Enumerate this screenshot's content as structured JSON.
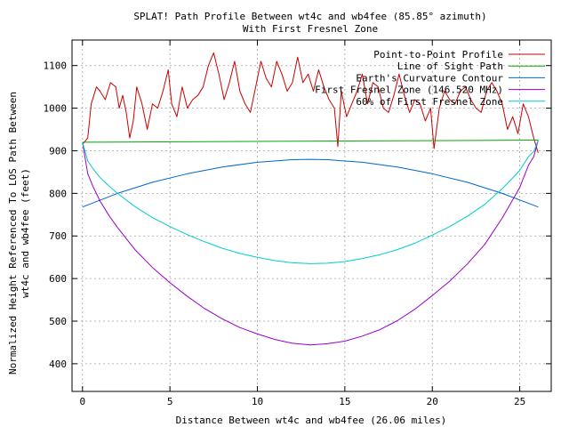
{
  "chart_data": {
    "type": "line",
    "title": "SPLAT! Path Profile Between wt4c and wb4fee (85.85° azimuth)",
    "subtitle": "With First Fresnel Zone",
    "xlabel": "Distance Between wt4c and wb4fee (26.06 miles)",
    "ylabel_line1": "Normalized Height Referenced To LOS Path Between",
    "ylabel_line2": "wt4c and wb4fee (feet)",
    "xlim": [
      -0.6,
      26.8
    ],
    "ylim": [
      335,
      1160
    ],
    "x_ticks": [
      0,
      5,
      10,
      15,
      20,
      25
    ],
    "y_ticks": [
      400,
      500,
      600,
      700,
      800,
      900,
      1000,
      1100
    ],
    "grid": true,
    "legend_position": "top-right",
    "series": [
      {
        "name": "Point-to-Point Profile",
        "color": "#cc0000",
        "x": [
          0,
          0.3,
          0.5,
          0.8,
          1.0,
          1.3,
          1.6,
          1.9,
          2.1,
          2.3,
          2.5,
          2.7,
          2.9,
          3.1,
          3.4,
          3.7,
          4.0,
          4.3,
          4.6,
          4.9,
          5.1,
          5.4,
          5.7,
          6.0,
          6.3,
          6.6,
          6.9,
          7.2,
          7.5,
          7.8,
          8.1,
          8.4,
          8.7,
          9.0,
          9.3,
          9.6,
          9.9,
          10.2,
          10.5,
          10.8,
          11.1,
          11.4,
          11.7,
          12.0,
          12.3,
          12.6,
          12.9,
          13.2,
          13.5,
          13.8,
          14.1,
          14.4,
          14.6,
          14.8,
          15.1,
          15.4,
          15.7,
          16.0,
          16.3,
          16.6,
          16.9,
          17.2,
          17.5,
          17.8,
          18.1,
          18.4,
          18.7,
          19.0,
          19.3,
          19.6,
          19.9,
          20.1,
          20.4,
          20.7,
          21.0,
          21.3,
          21.6,
          21.9,
          22.2,
          22.5,
          22.8,
          23.1,
          23.4,
          23.7,
          24.0,
          24.3,
          24.6,
          24.9,
          25.2,
          25.5,
          25.8,
          26.06
        ],
        "y": [
          915,
          930,
          1010,
          1050,
          1040,
          1020,
          1060,
          1050,
          1000,
          1030,
          990,
          930,
          970,
          1050,
          1010,
          950,
          1010,
          1000,
          1040,
          1090,
          1010,
          980,
          1050,
          1000,
          1020,
          1030,
          1050,
          1100,
          1130,
          1080,
          1020,
          1060,
          1110,
          1040,
          1010,
          990,
          1050,
          1110,
          1070,
          1050,
          1110,
          1080,
          1040,
          1060,
          1120,
          1060,
          1080,
          1040,
          1090,
          1050,
          1020,
          1000,
          910,
          1040,
          980,
          1010,
          1040,
          1080,
          1010,
          1060,
          1050,
          1000,
          990,
          1030,
          1080,
          1030,
          990,
          1020,
          1010,
          970,
          1000,
          905,
          1000,
          1040,
          1020,
          1010,
          1040,
          1050,
          1020,
          1000,
          990,
          1040,
          1060,
          1040,
          1010,
          950,
          980,
          940,
          1010,
          980,
          930,
          895
        ]
      },
      {
        "name": "Line of Sight Path",
        "color": "#00aa00",
        "x": [
          0,
          26.06
        ],
        "y": [
          920,
          925
        ]
      },
      {
        "name": "Earth's Curvature Contour",
        "color": "#0066cc",
        "x": [
          0,
          2,
          4,
          6,
          8,
          10,
          12,
          13.03,
          14,
          16,
          18,
          20,
          22,
          24,
          26.06
        ],
        "y": [
          768,
          800,
          826,
          846,
          862,
          873,
          879,
          880,
          879,
          873,
          862,
          846,
          826,
          800,
          768
        ]
      },
      {
        "name": "First Fresnel Zone (146.520 MHz)",
        "color": "#9900cc",
        "x": [
          0,
          0.3,
          0.6,
          1,
          1.5,
          2,
          3,
          4,
          5,
          6,
          7,
          8,
          9,
          10,
          11,
          12,
          13.03,
          14,
          15,
          16,
          17,
          18,
          19,
          20,
          21,
          22,
          23,
          24,
          24.5,
          25,
          25.5,
          25.8,
          26.06
        ],
        "y": [
          920,
          846,
          816,
          782,
          749,
          720,
          668,
          626,
          590,
          558,
          529,
          505,
          485,
          470,
          457,
          448,
          444,
          447,
          453,
          465,
          480,
          501,
          528,
          560,
          594,
          634,
          680,
          742,
          778,
          814,
          866,
          886,
          925
        ]
      },
      {
        "name": "60% of First Fresnel Zone",
        "color": "#00cccc",
        "x": [
          0,
          0.3,
          0.6,
          1,
          1.5,
          2,
          3,
          4,
          5,
          6,
          7,
          8,
          9,
          10,
          11,
          12,
          13.03,
          14,
          15,
          16,
          17,
          18,
          19,
          20,
          21,
          22,
          23,
          24,
          24.5,
          25,
          25.5,
          25.8,
          26.06
        ],
        "y": [
          920,
          876,
          858,
          837,
          818,
          800,
          769,
          743,
          722,
          703,
          686,
          671,
          659,
          650,
          642,
          637,
          635,
          636,
          640,
          647,
          656,
          668,
          683,
          702,
          722,
          746,
          774,
          811,
          832,
          854,
          886,
          898,
          925
        ]
      }
    ]
  }
}
